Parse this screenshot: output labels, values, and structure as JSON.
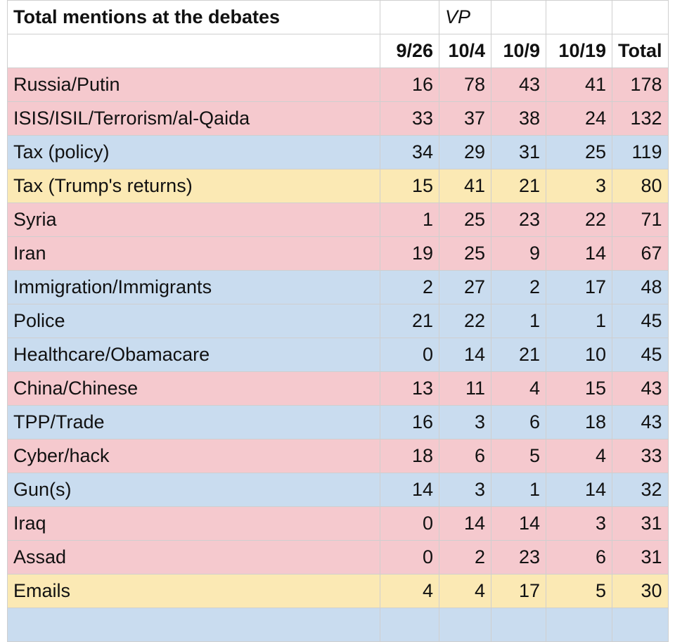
{
  "table": {
    "title": "Total mentions at the debates",
    "vp_label": "VP",
    "columns": [
      "9/26",
      "10/4",
      "10/9",
      "10/19",
      "Total"
    ],
    "colors": {
      "red": "#f5c9ce",
      "blue": "#c9dcef",
      "yellow": "#fbe9b4"
    },
    "rows": [
      {
        "topic": "Russia/Putin",
        "color": "red",
        "v": [
          "16",
          "78",
          "43",
          "41",
          "178"
        ]
      },
      {
        "topic": "ISIS/ISIL/Terrorism/al-Qaida",
        "color": "red",
        "v": [
          "33",
          "37",
          "38",
          "24",
          "132"
        ]
      },
      {
        "topic": "Tax (policy)",
        "color": "blue",
        "v": [
          "34",
          "29",
          "31",
          "25",
          "119"
        ]
      },
      {
        "topic": "Tax (Trump's returns)",
        "color": "yellow",
        "v": [
          "15",
          "41",
          "21",
          "3",
          "80"
        ]
      },
      {
        "topic": "Syria",
        "color": "red",
        "v": [
          "1",
          "25",
          "23",
          "22",
          "71"
        ]
      },
      {
        "topic": "Iran",
        "color": "red",
        "v": [
          "19",
          "25",
          "9",
          "14",
          "67"
        ]
      },
      {
        "topic": "Immigration/Immigrants",
        "color": "blue",
        "v": [
          "2",
          "27",
          "2",
          "17",
          "48"
        ]
      },
      {
        "topic": "Police",
        "color": "blue",
        "v": [
          "21",
          "22",
          "1",
          "1",
          "45"
        ]
      },
      {
        "topic": "Healthcare/Obamacare",
        "color": "blue",
        "v": [
          "0",
          "14",
          "21",
          "10",
          "45"
        ]
      },
      {
        "topic": "China/Chinese",
        "color": "red",
        "v": [
          "13",
          "11",
          "4",
          "15",
          "43"
        ]
      },
      {
        "topic": "TPP/Trade",
        "color": "blue",
        "v": [
          "16",
          "3",
          "6",
          "18",
          "43"
        ]
      },
      {
        "topic": "Cyber/hack",
        "color": "red",
        "v": [
          "18",
          "6",
          "5",
          "4",
          "33"
        ]
      },
      {
        "topic": "Gun(s)",
        "color": "blue",
        "v": [
          "14",
          "3",
          "1",
          "14",
          "32"
        ]
      },
      {
        "topic": "Iraq",
        "color": "red",
        "v": [
          "0",
          "14",
          "14",
          "3",
          "31"
        ]
      },
      {
        "topic": "Assad",
        "color": "red",
        "v": [
          "0",
          "2",
          "23",
          "6",
          "31"
        ]
      },
      {
        "topic": "Emails",
        "color": "yellow",
        "v": [
          "4",
          "4",
          "17",
          "5",
          "30"
        ]
      }
    ]
  }
}
